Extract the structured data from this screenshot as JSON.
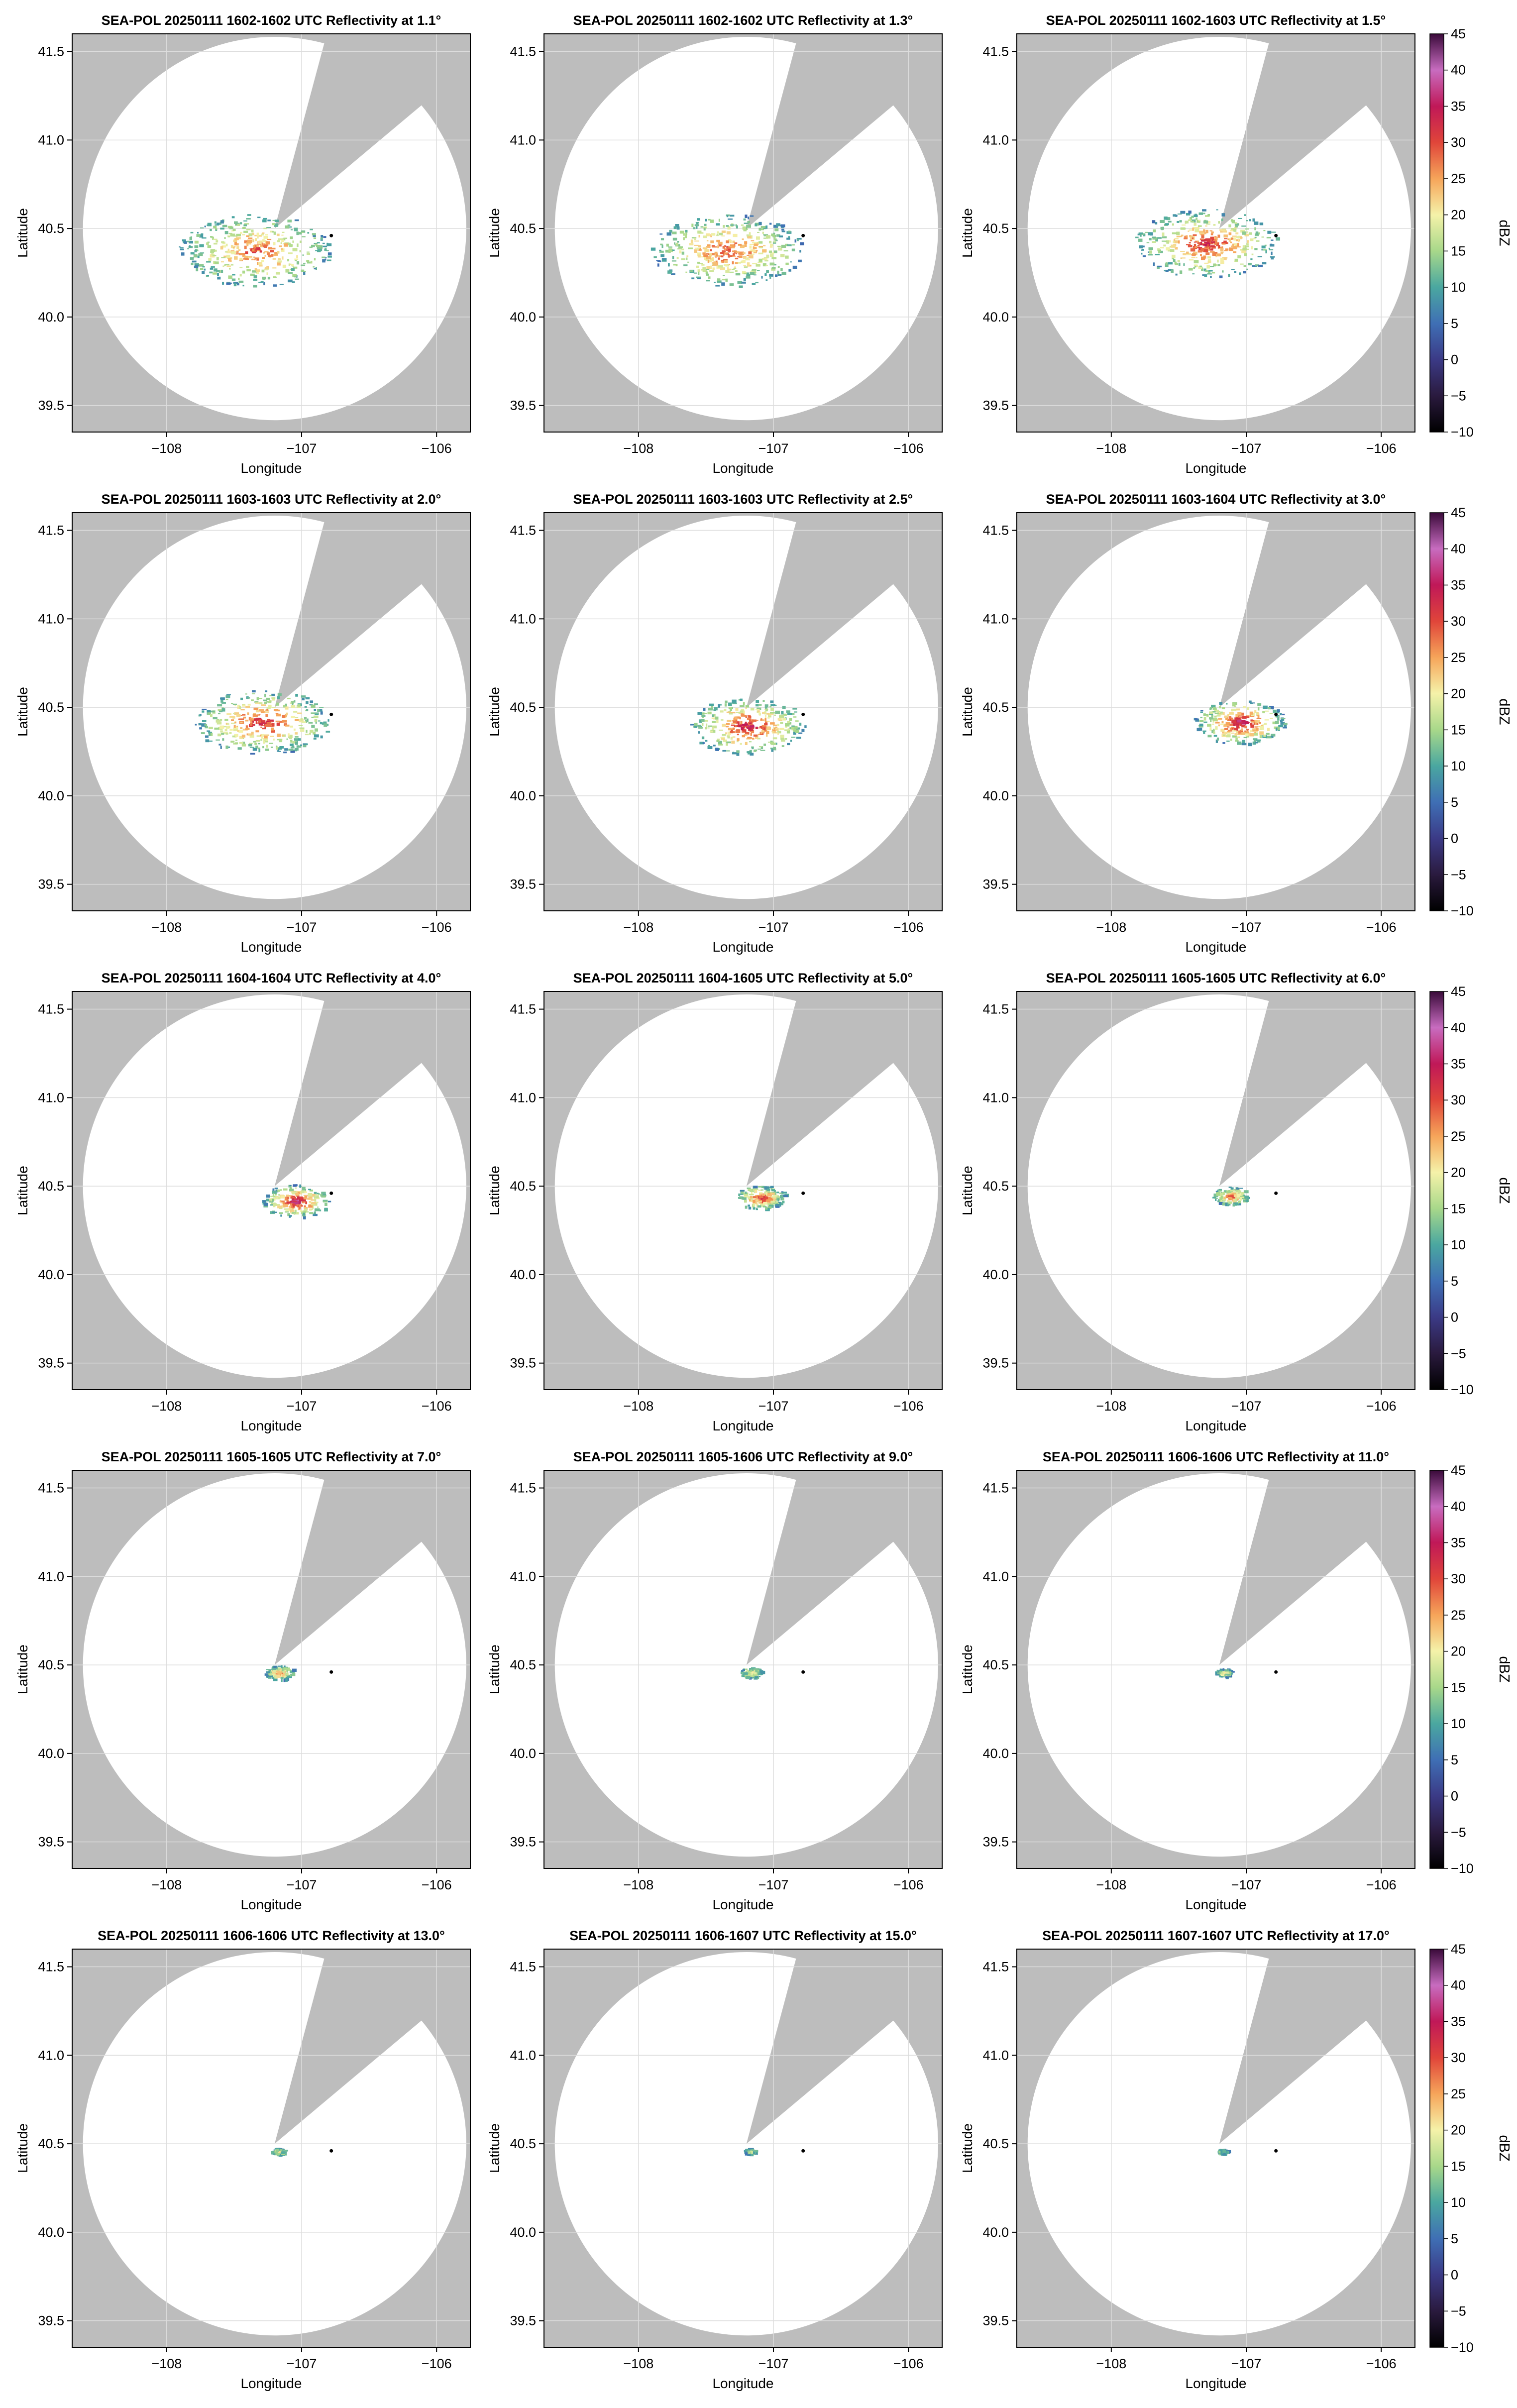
{
  "figure": {
    "rows": 5,
    "cols": 3,
    "colors": {
      "outside_coverage": "#bdbdbd",
      "coverage": "#ffffff",
      "grid": "#dddddd",
      "radar_site_marker": "#000000"
    }
  },
  "chart_data": [
    {
      "type": "heatmap",
      "title": "SEA-POL 20250111 1602-1602 UTC Reflectivity at 1.1°",
      "xlabel": "Longitude",
      "ylabel": "Latitude",
      "xlim": [
        -108.7,
        -105.75
      ],
      "ylim": [
        39.35,
        41.6
      ],
      "xticks": [
        -108,
        -107,
        -106
      ],
      "xtick_labels": [
        "−108",
        "−107",
        "−106"
      ],
      "yticks": [
        39.5,
        40.0,
        40.5,
        41.0,
        41.5
      ],
      "ytick_labels": [
        "39.5",
        "40.0",
        "40.5",
        "41.0",
        "41.5"
      ],
      "grid": true,
      "radar_site": {
        "lon": -107.2,
        "lat": 40.5
      },
      "marker": {
        "lon": -106.78,
        "lat": 40.46
      },
      "coverage_radius_deg": 1.42,
      "blocked_sector_deg": [
        15,
        50
      ],
      "echo": {
        "lon": -107.35,
        "lat": 40.38,
        "extent": 0.9,
        "max_dbz": 30
      }
    },
    {
      "type": "heatmap",
      "title": "SEA-POL 20250111 1602-1602 UTC Reflectivity at 1.3°",
      "xlabel": "Longitude",
      "ylabel": "Latitude",
      "xlim": [
        -108.7,
        -105.75
      ],
      "ylim": [
        39.35,
        41.6
      ],
      "xticks": [
        -108,
        -107,
        -106
      ],
      "xtick_labels": [
        "−108",
        "−107",
        "−106"
      ],
      "yticks": [
        39.5,
        40.0,
        40.5,
        41.0,
        41.5
      ],
      "ytick_labels": [
        "39.5",
        "40.0",
        "40.5",
        "41.0",
        "41.5"
      ],
      "grid": true,
      "radar_site": {
        "lon": -107.2,
        "lat": 40.5
      },
      "marker": {
        "lon": -106.78,
        "lat": 40.46
      },
      "coverage_radius_deg": 1.42,
      "blocked_sector_deg": [
        15,
        50
      ],
      "echo": {
        "lon": -107.35,
        "lat": 40.38,
        "extent": 0.9,
        "max_dbz": 30
      }
    },
    {
      "type": "heatmap",
      "title": "SEA-POL 20250111 1602-1603 UTC Reflectivity at 1.5°",
      "xlabel": "Longitude",
      "ylabel": "Latitude",
      "xlim": [
        -108.7,
        -105.75
      ],
      "ylim": [
        39.35,
        41.6
      ],
      "xticks": [
        -108,
        -107,
        -106
      ],
      "xtick_labels": [
        "−108",
        "−107",
        "−106"
      ],
      "yticks": [
        39.5,
        40.0,
        40.5,
        41.0,
        41.5
      ],
      "ytick_labels": [
        "39.5",
        "40.0",
        "40.5",
        "41.0",
        "41.5"
      ],
      "grid": true,
      "radar_site": {
        "lon": -107.2,
        "lat": 40.5
      },
      "marker": {
        "lon": -106.78,
        "lat": 40.46
      },
      "coverage_radius_deg": 1.42,
      "blocked_sector_deg": [
        15,
        50
      ],
      "echo": {
        "lon": -107.3,
        "lat": 40.42,
        "extent": 0.85,
        "max_dbz": 32
      }
    },
    {
      "type": "heatmap",
      "title": "SEA-POL 20250111 1603-1603 UTC Reflectivity at 2.0°",
      "xlabel": "Longitude",
      "ylabel": "Latitude",
      "xlim": [
        -108.7,
        -105.75
      ],
      "ylim": [
        39.35,
        41.6
      ],
      "xticks": [
        -108,
        -107,
        -106
      ],
      "xtick_labels": [
        "−108",
        "−107",
        "−106"
      ],
      "yticks": [
        39.5,
        40.0,
        40.5,
        41.0,
        41.5
      ],
      "ytick_labels": [
        "39.5",
        "40.0",
        "40.5",
        "41.0",
        "41.5"
      ],
      "grid": true,
      "radar_site": {
        "lon": -107.2,
        "lat": 40.5
      },
      "marker": {
        "lon": -106.78,
        "lat": 40.46
      },
      "coverage_radius_deg": 1.42,
      "blocked_sector_deg": [
        15,
        50
      ],
      "echo": {
        "lon": -107.3,
        "lat": 40.42,
        "extent": 0.8,
        "max_dbz": 33
      }
    },
    {
      "type": "heatmap",
      "title": "SEA-POL 20250111 1603-1603 UTC Reflectivity at 2.5°",
      "xlabel": "Longitude",
      "ylabel": "Latitude",
      "xlim": [
        -108.7,
        -105.75
      ],
      "ylim": [
        39.35,
        41.6
      ],
      "xticks": [
        -108,
        -107,
        -106
      ],
      "xtick_labels": [
        "−108",
        "−107",
        "−106"
      ],
      "yticks": [
        39.5,
        40.0,
        40.5,
        41.0,
        41.5
      ],
      "ytick_labels": [
        "39.5",
        "40.0",
        "40.5",
        "41.0",
        "41.5"
      ],
      "grid": true,
      "radar_site": {
        "lon": -107.2,
        "lat": 40.5
      },
      "marker": {
        "lon": -106.78,
        "lat": 40.46
      },
      "coverage_radius_deg": 1.42,
      "blocked_sector_deg": [
        15,
        50
      ],
      "echo": {
        "lon": -107.2,
        "lat": 40.4,
        "extent": 0.7,
        "max_dbz": 34
      }
    },
    {
      "type": "heatmap",
      "title": "SEA-POL 20250111 1603-1604 UTC Reflectivity at 3.0°",
      "xlabel": "Longitude",
      "ylabel": "Latitude",
      "xlim": [
        -108.7,
        -105.75
      ],
      "ylim": [
        39.35,
        41.6
      ],
      "xticks": [
        -108,
        -107,
        -106
      ],
      "xtick_labels": [
        "−108",
        "−107",
        "−106"
      ],
      "yticks": [
        39.5,
        40.0,
        40.5,
        41.0,
        41.5
      ],
      "ytick_labels": [
        "39.5",
        "40.0",
        "40.5",
        "41.0",
        "41.5"
      ],
      "grid": true,
      "radar_site": {
        "lon": -107.2,
        "lat": 40.5
      },
      "marker": {
        "lon": -106.78,
        "lat": 40.46
      },
      "coverage_radius_deg": 1.42,
      "blocked_sector_deg": [
        15,
        50
      ],
      "echo": {
        "lon": -107.05,
        "lat": 40.42,
        "extent": 0.55,
        "max_dbz": 36
      }
    },
    {
      "type": "heatmap",
      "title": "SEA-POL 20250111 1604-1604 UTC Reflectivity at 4.0°",
      "xlabel": "Longitude",
      "ylabel": "Latitude",
      "xlim": [
        -108.7,
        -105.75
      ],
      "ylim": [
        39.35,
        41.6
      ],
      "xticks": [
        -108,
        -107,
        -106
      ],
      "xtick_labels": [
        "−108",
        "−107",
        "−106"
      ],
      "yticks": [
        39.5,
        40.0,
        40.5,
        41.0,
        41.5
      ],
      "ytick_labels": [
        "39.5",
        "40.0",
        "40.5",
        "41.0",
        "41.5"
      ],
      "grid": true,
      "radar_site": {
        "lon": -107.2,
        "lat": 40.5
      },
      "marker": {
        "lon": -106.78,
        "lat": 40.46
      },
      "coverage_radius_deg": 1.42,
      "blocked_sector_deg": [
        15,
        50
      ],
      "echo": {
        "lon": -107.05,
        "lat": 40.42,
        "extent": 0.4,
        "max_dbz": 36
      }
    },
    {
      "type": "heatmap",
      "title": "SEA-POL 20250111 1604-1605 UTC Reflectivity at 5.0°",
      "xlabel": "Longitude",
      "ylabel": "Latitude",
      "xlim": [
        -108.7,
        -105.75
      ],
      "ylim": [
        39.35,
        41.6
      ],
      "xticks": [
        -108,
        -107,
        -106
      ],
      "xtick_labels": [
        "−108",
        "−107",
        "−106"
      ],
      "yticks": [
        39.5,
        40.0,
        40.5,
        41.0,
        41.5
      ],
      "ytick_labels": [
        "39.5",
        "40.0",
        "40.5",
        "41.0",
        "41.5"
      ],
      "grid": true,
      "radar_site": {
        "lon": -107.2,
        "lat": 40.5
      },
      "marker": {
        "lon": -106.78,
        "lat": 40.46
      },
      "coverage_radius_deg": 1.42,
      "blocked_sector_deg": [
        15,
        50
      ],
      "echo": {
        "lon": -107.1,
        "lat": 40.44,
        "extent": 0.3,
        "max_dbz": 32
      }
    },
    {
      "type": "heatmap",
      "title": "SEA-POL 20250111 1605-1605 UTC Reflectivity at 6.0°",
      "xlabel": "Longitude",
      "ylabel": "Latitude",
      "xlim": [
        -108.7,
        -105.75
      ],
      "ylim": [
        39.35,
        41.6
      ],
      "xticks": [
        -108,
        -107,
        -106
      ],
      "xtick_labels": [
        "−108",
        "−107",
        "−106"
      ],
      "yticks": [
        39.5,
        40.0,
        40.5,
        41.0,
        41.5
      ],
      "ytick_labels": [
        "39.5",
        "40.0",
        "40.5",
        "41.0",
        "41.5"
      ],
      "grid": true,
      "radar_site": {
        "lon": -107.2,
        "lat": 40.5
      },
      "marker": {
        "lon": -106.78,
        "lat": 40.46
      },
      "coverage_radius_deg": 1.42,
      "blocked_sector_deg": [
        15,
        50
      ],
      "echo": {
        "lon": -107.12,
        "lat": 40.45,
        "extent": 0.22,
        "max_dbz": 30
      }
    },
    {
      "type": "heatmap",
      "title": "SEA-POL 20250111 1605-1605 UTC Reflectivity at 7.0°",
      "xlabel": "Longitude",
      "ylabel": "Latitude",
      "xlim": [
        -108.7,
        -105.75
      ],
      "ylim": [
        39.35,
        41.6
      ],
      "xticks": [
        -108,
        -107,
        -106
      ],
      "xtick_labels": [
        "−108",
        "−107",
        "−106"
      ],
      "yticks": [
        39.5,
        40.0,
        40.5,
        41.0,
        41.5
      ],
      "ytick_labels": [
        "39.5",
        "40.0",
        "40.5",
        "41.0",
        "41.5"
      ],
      "grid": true,
      "radar_site": {
        "lon": -107.2,
        "lat": 40.5
      },
      "marker": {
        "lon": -106.78,
        "lat": 40.46
      },
      "coverage_radius_deg": 1.42,
      "blocked_sector_deg": [
        15,
        50
      ],
      "echo": {
        "lon": -107.17,
        "lat": 40.46,
        "extent": 0.18,
        "max_dbz": 28
      }
    },
    {
      "type": "heatmap",
      "title": "SEA-POL 20250111 1605-1606 UTC Reflectivity at 9.0°",
      "xlabel": "Longitude",
      "ylabel": "Latitude",
      "xlim": [
        -108.7,
        -105.75
      ],
      "ylim": [
        39.35,
        41.6
      ],
      "xticks": [
        -108,
        -107,
        -106
      ],
      "xtick_labels": [
        "−108",
        "−107",
        "−106"
      ],
      "yticks": [
        39.5,
        40.0,
        40.5,
        41.0,
        41.5
      ],
      "ytick_labels": [
        "39.5",
        "40.0",
        "40.5",
        "41.0",
        "41.5"
      ],
      "grid": true,
      "radar_site": {
        "lon": -107.2,
        "lat": 40.5
      },
      "marker": {
        "lon": -106.78,
        "lat": 40.46
      },
      "coverage_radius_deg": 1.42,
      "blocked_sector_deg": [
        15,
        50
      ],
      "echo": {
        "lon": -107.17,
        "lat": 40.46,
        "extent": 0.13,
        "max_dbz": 25
      }
    },
    {
      "type": "heatmap",
      "title": "SEA-POL 20250111 1606-1606 UTC Reflectivity at 11.0°",
      "xlabel": "Longitude",
      "ylabel": "Latitude",
      "xlim": [
        -108.7,
        -105.75
      ],
      "ylim": [
        39.35,
        41.6
      ],
      "xticks": [
        -108,
        -107,
        -106
      ],
      "xtick_labels": [
        "−108",
        "−107",
        "−106"
      ],
      "yticks": [
        39.5,
        40.0,
        40.5,
        41.0,
        41.5
      ],
      "ytick_labels": [
        "39.5",
        "40.0",
        "40.5",
        "41.0",
        "41.5"
      ],
      "grid": true,
      "radar_site": {
        "lon": -107.2,
        "lat": 40.5
      },
      "marker": {
        "lon": -106.78,
        "lat": 40.46
      },
      "coverage_radius_deg": 1.42,
      "blocked_sector_deg": [
        15,
        50
      ],
      "echo": {
        "lon": -107.17,
        "lat": 40.46,
        "extent": 0.1,
        "max_dbz": 22
      }
    },
    {
      "type": "heatmap",
      "title": "SEA-POL 20250111 1606-1606 UTC Reflectivity at 13.0°",
      "xlabel": "Longitude",
      "ylabel": "Latitude",
      "xlim": [
        -108.7,
        -105.75
      ],
      "ylim": [
        39.35,
        41.6
      ],
      "xticks": [
        -108,
        -107,
        -106
      ],
      "xtick_labels": [
        "−108",
        "−107",
        "−106"
      ],
      "yticks": [
        39.5,
        40.0,
        40.5,
        41.0,
        41.5
      ],
      "ytick_labels": [
        "39.5",
        "40.0",
        "40.5",
        "41.0",
        "41.5"
      ],
      "grid": true,
      "radar_site": {
        "lon": -107.2,
        "lat": 40.5
      },
      "marker": {
        "lon": -106.78,
        "lat": 40.46
      },
      "coverage_radius_deg": 1.42,
      "blocked_sector_deg": [
        15,
        50
      ],
      "echo": {
        "lon": -107.18,
        "lat": 40.46,
        "extent": 0.08,
        "max_dbz": 20
      }
    },
    {
      "type": "heatmap",
      "title": "SEA-POL 20250111 1606-1607 UTC Reflectivity at 15.0°",
      "xlabel": "Longitude",
      "ylabel": "Latitude",
      "xlim": [
        -108.7,
        -105.75
      ],
      "ylim": [
        39.35,
        41.6
      ],
      "xticks": [
        -108,
        -107,
        -106
      ],
      "xtick_labels": [
        "−108",
        "−107",
        "−106"
      ],
      "yticks": [
        39.5,
        40.0,
        40.5,
        41.0,
        41.5
      ],
      "ytick_labels": [
        "39.5",
        "40.0",
        "40.5",
        "41.0",
        "41.5"
      ],
      "grid": true,
      "radar_site": {
        "lon": -107.2,
        "lat": 40.5
      },
      "marker": {
        "lon": -106.78,
        "lat": 40.46
      },
      "coverage_radius_deg": 1.42,
      "blocked_sector_deg": [
        15,
        50
      ],
      "echo": {
        "lon": -107.18,
        "lat": 40.46,
        "extent": 0.07,
        "max_dbz": 18
      }
    },
    {
      "type": "heatmap",
      "title": "SEA-POL 20250111 1607-1607 UTC Reflectivity at 17.0°",
      "xlabel": "Longitude",
      "ylabel": "Latitude",
      "xlim": [
        -108.7,
        -105.75
      ],
      "ylim": [
        39.35,
        41.6
      ],
      "xticks": [
        -108,
        -107,
        -106
      ],
      "xtick_labels": [
        "−108",
        "−107",
        "−106"
      ],
      "yticks": [
        39.5,
        40.0,
        40.5,
        41.0,
        41.5
      ],
      "ytick_labels": [
        "39.5",
        "40.0",
        "40.5",
        "41.0",
        "41.5"
      ],
      "grid": true,
      "radar_site": {
        "lon": -107.2,
        "lat": 40.5
      },
      "marker": {
        "lon": -106.78,
        "lat": 40.46
      },
      "coverage_radius_deg": 1.42,
      "blocked_sector_deg": [
        15,
        50
      ],
      "echo": {
        "lon": -107.18,
        "lat": 40.46,
        "extent": 0.06,
        "max_dbz": 16
      }
    }
  ],
  "colorbar": {
    "label": "dBZ",
    "range": [
      -10,
      45
    ],
    "ticks": [
      -10,
      -5,
      0,
      5,
      10,
      15,
      20,
      25,
      30,
      35,
      40,
      45
    ],
    "tick_labels": [
      "−10",
      "−5",
      "0",
      "5",
      "10",
      "15",
      "20",
      "25",
      "30",
      "35",
      "40",
      "45"
    ],
    "colormap_stops": [
      {
        "value": -10,
        "color": "#000000"
      },
      {
        "value": -5,
        "color": "#2a1a3e"
      },
      {
        "value": 0,
        "color": "#3b3a86"
      },
      {
        "value": 5,
        "color": "#3f6fb5"
      },
      {
        "value": 10,
        "color": "#4aa7a0"
      },
      {
        "value": 15,
        "color": "#a8d88a"
      },
      {
        "value": 20,
        "color": "#f5f2a9"
      },
      {
        "value": 25,
        "color": "#f6a55a"
      },
      {
        "value": 30,
        "color": "#e0453a"
      },
      {
        "value": 35,
        "color": "#c01858"
      },
      {
        "value": 40,
        "color": "#c86cc0"
      },
      {
        "value": 45,
        "color": "#3a0a3a"
      }
    ]
  }
}
